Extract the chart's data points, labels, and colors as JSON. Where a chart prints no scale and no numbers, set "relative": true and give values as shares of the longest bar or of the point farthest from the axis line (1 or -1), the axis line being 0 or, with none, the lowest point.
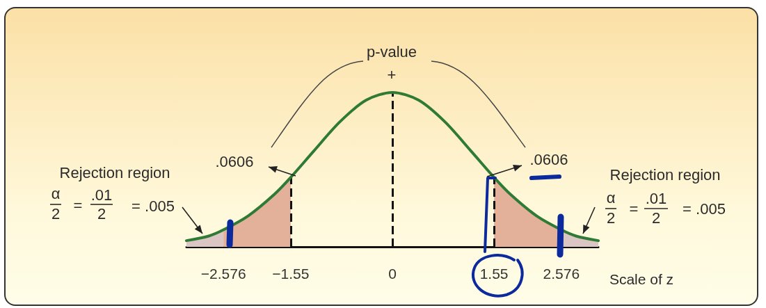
{
  "chart_data": {
    "type": "line",
    "relative": true,
    "xlabel": "Scale of z",
    "xlim": [
      -3.14,
      3.14
    ],
    "xticks": [
      {
        "value": -2.576,
        "label": "−2.576"
      },
      {
        "value": -1.55,
        "label": "−1.55"
      },
      0,
      1.55,
      2.576
    ],
    "series": [
      {
        "type": "area",
        "color": "#dcc6c4",
        "x": [
          -3.14,
          -2.8,
          -2.576
        ],
        "values": [
          0.04,
          0.07,
          0.11
        ]
      },
      {
        "type": "area",
        "color": "#e3b09a",
        "x": [
          -2.576,
          -2.2,
          -1.8,
          -1.55
        ],
        "values": [
          0.11,
          0.2,
          0.34,
          0.45
        ]
      },
      {
        "type": "area",
        "color": "#e3b09a",
        "x": [
          1.55,
          1.8,
          2.2,
          2.576
        ],
        "values": [
          0.45,
          0.34,
          0.2,
          0.11
        ]
      },
      {
        "type": "area",
        "color": "#dcc6c4",
        "x": [
          2.576,
          2.8,
          3.14
        ],
        "values": [
          0.11,
          0.07,
          0.04
        ]
      },
      {
        "type": "line",
        "color": "#2f7a34",
        "x": [
          -3.14,
          -2.8,
          -2.576,
          -2.2,
          -1.8,
          -1.55,
          -1.2,
          -0.8,
          -0.4,
          0,
          0.4,
          0.8,
          1.2,
          1.55,
          1.8,
          2.2,
          2.576,
          2.8,
          3.14
        ],
        "values": [
          0.04,
          0.07,
          0.11,
          0.2,
          0.34,
          0.45,
          0.62,
          0.81,
          0.95,
          1,
          0.95,
          0.81,
          0.62,
          0.45,
          0.34,
          0.2,
          0.11,
          0.07,
          0.04
        ]
      }
    ],
    "ref_lines": [
      {
        "axis": "x",
        "value": -1.55,
        "line_style": "dashed",
        "color": "#111111"
      },
      {
        "axis": "x",
        "value": 0,
        "line_style": "dashed",
        "color": "#111111"
      },
      {
        "axis": "x",
        "value": 1.55,
        "line_style": "dashed",
        "color": "#111111"
      }
    ],
    "annotations": [
      "p-value",
      "+",
      ".0606",
      ".0606",
      "Rejection region",
      "α",
      "2",
      "=",
      ".01",
      "2",
      "= .005",
      "Rejection region",
      "α",
      "2",
      "=",
      ".01",
      "2",
      "= .005"
    ]
  }
}
